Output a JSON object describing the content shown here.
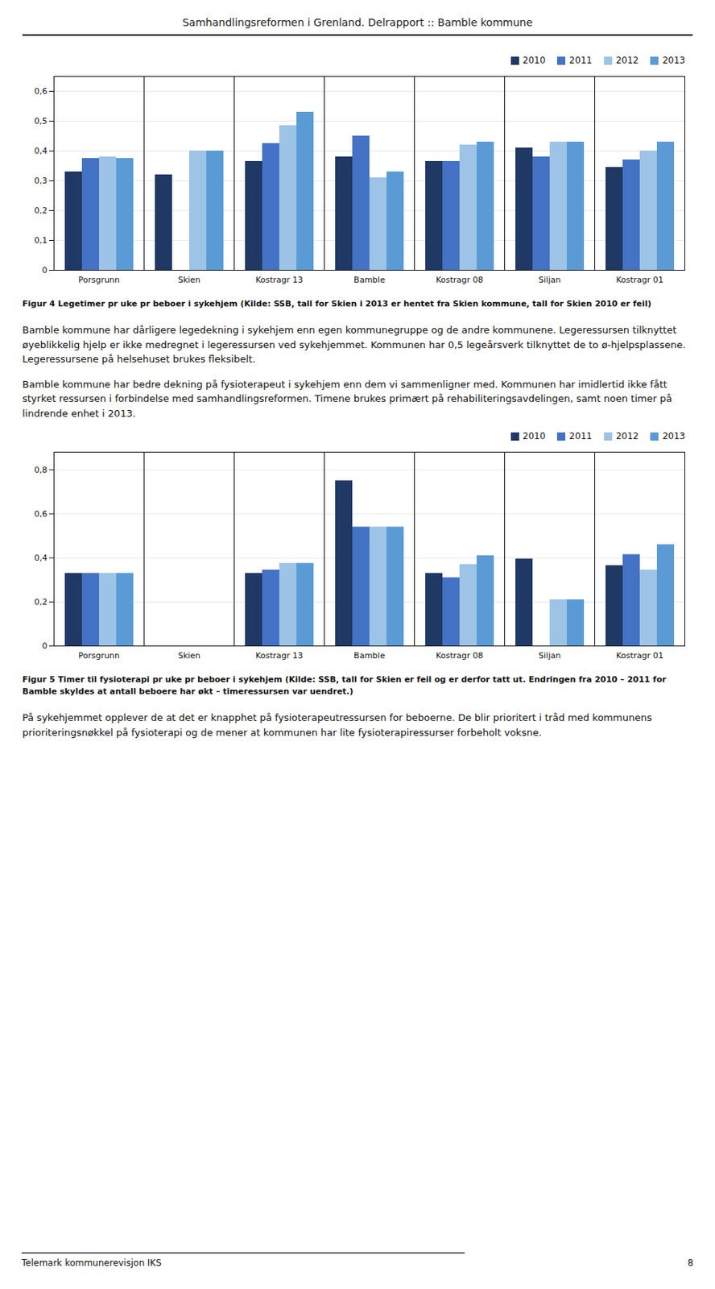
{
  "page_title": "Samhandlingsreformen i Grenland. Delrapport :: Bamble kommune",
  "chart_data": [
    {
      "type": "bar",
      "categories": [
        "Porsgrunn",
        "Skien",
        "Kostragr 13",
        "Bamble",
        "Kostragr 08",
        "Siljan",
        "Kostragr 01"
      ],
      "series": [
        {
          "name": "2010",
          "color": "#1F3864",
          "values": [
            0.33,
            0.32,
            0.365,
            0.38,
            0.365,
            0.41,
            0.345
          ]
        },
        {
          "name": "2011",
          "color": "#4472C4",
          "values": [
            0.375,
            0.0,
            0.425,
            0.45,
            0.365,
            0.38,
            0.37
          ]
        },
        {
          "name": "2012",
          "color": "#9DC3E6",
          "values": [
            0.38,
            0.4,
            0.485,
            0.31,
            0.42,
            0.43,
            0.4
          ]
        },
        {
          "name": "2013",
          "color": "#5B9BD5",
          "values": [
            0.375,
            0.4,
            0.53,
            0.33,
            0.43,
            0.43,
            0.43
          ]
        }
      ],
      "ylim": [
        0,
        0.65
      ],
      "yticks": [
        0,
        {
          "value": 0.1,
          "label": "0,1"
        },
        {
          "value": 0.2,
          "label": "0,2"
        },
        {
          "value": 0.3,
          "label": "0,3"
        },
        {
          "value": 0.4,
          "label": "0,4"
        },
        {
          "value": 0.5,
          "label": "0,5"
        },
        {
          "value": 0.6,
          "label": "0,6"
        }
      ],
      "grid": true,
      "legend": "upper right",
      "caption": "Figur 4 Legetimer pr uke pr beboer i sykehjem (Kilde: SSB, tall for Skien i 2013 er hentet fra Skien kommune, tall for Skien 2010 er feil)"
    },
    {
      "type": "bar",
      "categories": [
        "Porsgrunn",
        "Skien",
        "Kostragr 13",
        "Bamble",
        "Kostragr 08",
        "Siljan",
        "Kostragr 01"
      ],
      "series": [
        {
          "name": "2010",
          "color": "#1F3864",
          "values": [
            0.33,
            0.0,
            0.33,
            0.75,
            0.33,
            0.395,
            0.365
          ]
        },
        {
          "name": "2011",
          "color": "#4472C4",
          "values": [
            0.33,
            0.0,
            0.345,
            0.54,
            0.31,
            0.0,
            0.415
          ]
        },
        {
          "name": "2012",
          "color": "#9DC3E6",
          "values": [
            0.33,
            0.0,
            0.375,
            0.54,
            0.37,
            0.21,
            0.345
          ]
        },
        {
          "name": "2013",
          "color": "#5B9BD5",
          "values": [
            0.33,
            0.0,
            0.375,
            0.54,
            0.41,
            0.21,
            0.46
          ]
        }
      ],
      "ylim": [
        0,
        0.88
      ],
      "yticks": [
        0,
        {
          "value": 0.2,
          "label": "0,2"
        },
        {
          "value": 0.4,
          "label": "0,4"
        },
        {
          "value": 0.6,
          "label": "0,6"
        },
        {
          "value": 0.8,
          "label": "0,8"
        }
      ],
      "grid": true,
      "legend": "upper right",
      "caption": "Figur 5 Timer til fysioterapi pr uke pr beboer i sykehjem (Kilde: SSB, tall for Skien er feil og er derfor tatt ut. Endringen fra 2010 – 2011 for Bamble skyldes at antall beboere har økt – timeressursen var uendret.)"
    }
  ],
  "texts": {
    "para1": "Bamble kommune har dårligere legedekning i sykehjem enn egen kommunegruppe og de andre kommunene. Legeressursen tilknyttet øyeblikkelig hjelp er ikke medregnet i legeressursen ved sykehjemmet. Kommunen har 0,5 legeårsverk tilknyttet de to ø-hjelpsplassene. Legeressursene på helsehuset brukes fleksibelt.",
    "para2": "Bamble kommune har bedre dekning på fysioterapeut i sykehjem enn dem vi sammenligner med. Kommunen har imidlertid ikke fått styrket ressursen i forbindelse med samhandlingsreformen. Timene brukes primært på rehabiliteringsavdelingen, samt noen timer på lindrende enhet i 2013.",
    "para3": "På sykehjemmet opplever de at det er knapphet på fysioterapeutressursen for beboerne. De blir prioritert i tråd med kommunens prioriteringsnøkkel på fysioterapi og de mener at kommunen har lite fysioterapiressurser forbeholt voksne.",
    "footer": "Telemark kommunerevisjon IKS",
    "page_num": "8"
  }
}
